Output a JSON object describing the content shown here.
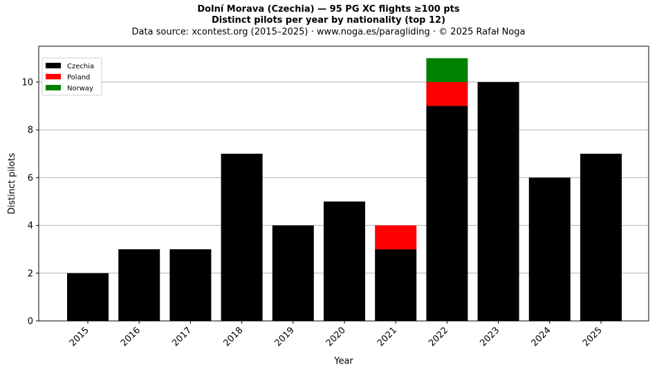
{
  "titles": {
    "line1": "Dolní Morava (Czechia)  —  95 PG XC flights ≥100 pts",
    "line2": "Distinct pilots per year by nationality (top 12)",
    "line3": "Data source: xcontest.org (2015–2025)  ·  www.noga.es/paragliding  ·  © 2025 Rafał Noga"
  },
  "chart_data": {
    "type": "bar",
    "stacked": true,
    "categories": [
      "2015",
      "2016",
      "2017",
      "2018",
      "2019",
      "2020",
      "2021",
      "2022",
      "2023",
      "2024",
      "2025"
    ],
    "series": [
      {
        "name": "Czechia",
        "color": "#000000",
        "values": [
          2,
          3,
          3,
          7,
          4,
          5,
          3,
          9,
          10,
          6,
          7
        ]
      },
      {
        "name": "Poland",
        "color": "#ff0000",
        "values": [
          0,
          0,
          0,
          0,
          0,
          0,
          1,
          1,
          0,
          0,
          0
        ]
      },
      {
        "name": "Norway",
        "color": "#008000",
        "values": [
          0,
          0,
          0,
          0,
          0,
          0,
          0,
          1,
          0,
          0,
          0
        ]
      }
    ],
    "xlabel": "Year",
    "ylabel": "Distinct pilots",
    "ylim": [
      0,
      11.5
    ],
    "yticks": [
      "0",
      "2",
      "4",
      "6",
      "8",
      "10"
    ],
    "grid": "horizontal",
    "legend_position": "top-left"
  }
}
